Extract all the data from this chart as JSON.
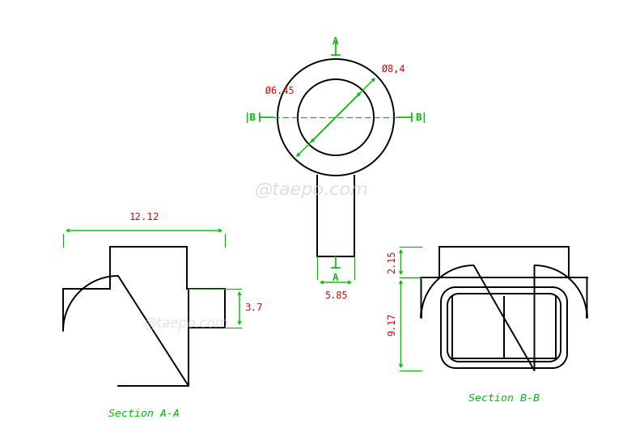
{
  "bg_color": "#ffffff",
  "line_color": "#000000",
  "dim_color": "#00bb00",
  "red_color": "#dd0000",
  "watermark_text": "@taepo.com",
  "top_view": {
    "dim_585_label": "5.85",
    "dim_645_label": "Ø6.45",
    "dim_84_label": "Ø8,4",
    "section_A_label": "A",
    "section_B_label": "B"
  },
  "section_aa": {
    "label": "Section A-A",
    "dim_1212": "12.12",
    "dim_37": "3.7"
  },
  "section_bb": {
    "label": "Section B-B",
    "dim_215": "2.15",
    "dim_917": "9.17"
  }
}
